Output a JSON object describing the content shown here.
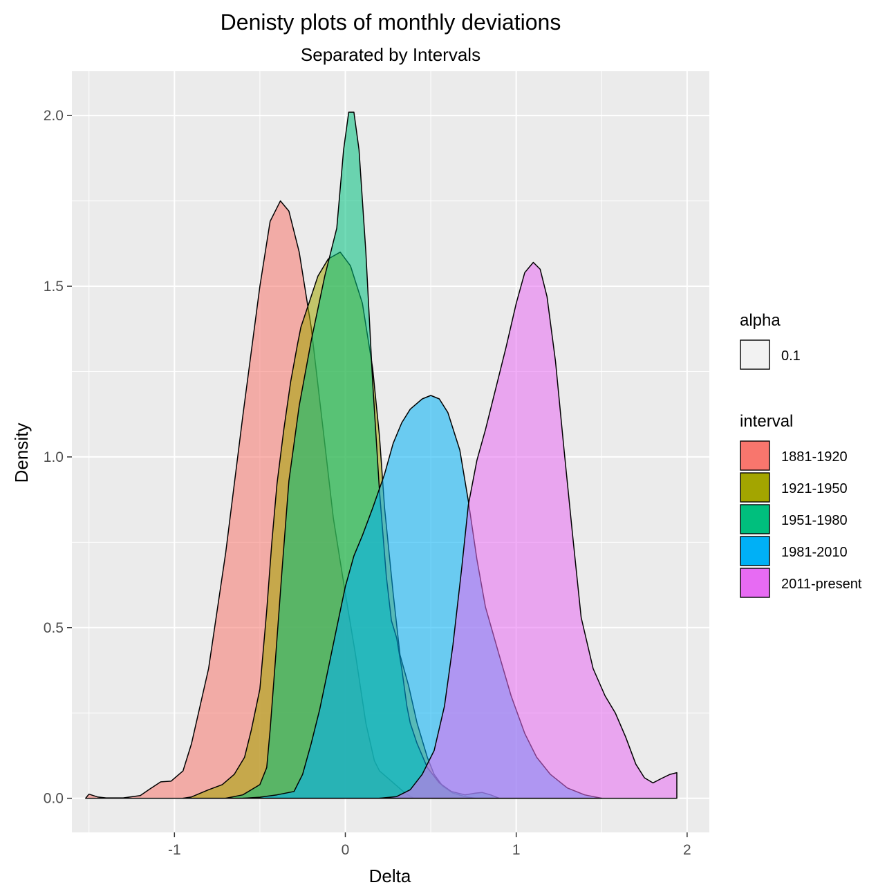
{
  "chart_data": {
    "type": "area",
    "title": "Denisty plots of monthly deviations",
    "subtitle": "Separated by Intervals",
    "xlabel": "Delta",
    "ylabel": "Density",
    "xlim": [
      -1.6,
      2.13
    ],
    "ylim": [
      -0.1,
      2.13
    ],
    "x_ticks": [
      -1,
      0,
      1,
      2
    ],
    "x_tick_labels": [
      "-1",
      "0",
      "1",
      "2"
    ],
    "y_ticks": [
      0.0,
      0.5,
      1.0,
      1.5,
      2.0
    ],
    "y_tick_labels": [
      "0.0",
      "0.5",
      "1.0",
      "1.5",
      "2.0"
    ],
    "grid": true,
    "fill_alpha": 0.55,
    "alpha_legend": {
      "title": "alpha",
      "label": "0.1"
    },
    "legend_title": "interval",
    "legend_position": "right",
    "series": [
      {
        "name": "1881-1920",
        "color": "#F8766D",
        "points": [
          [
            -1.52,
            0.0
          ],
          [
            -1.5,
            0.012
          ],
          [
            -1.45,
            0.004
          ],
          [
            -1.4,
            0.001
          ],
          [
            -1.3,
            0.001
          ],
          [
            -1.2,
            0.008
          ],
          [
            -1.15,
            0.025
          ],
          [
            -1.08,
            0.048
          ],
          [
            -1.02,
            0.05
          ],
          [
            -0.95,
            0.08
          ],
          [
            -0.9,
            0.16
          ],
          [
            -0.8,
            0.38
          ],
          [
            -0.7,
            0.72
          ],
          [
            -0.6,
            1.12
          ],
          [
            -0.5,
            1.5
          ],
          [
            -0.44,
            1.69
          ],
          [
            -0.38,
            1.75
          ],
          [
            -0.33,
            1.72
          ],
          [
            -0.27,
            1.6
          ],
          [
            -0.2,
            1.38
          ],
          [
            -0.13,
            1.08
          ],
          [
            -0.07,
            0.82
          ],
          [
            0.0,
            0.6
          ],
          [
            0.06,
            0.42
          ],
          [
            0.12,
            0.22
          ],
          [
            0.17,
            0.11
          ],
          [
            0.2,
            0.08
          ],
          [
            0.27,
            0.05
          ],
          [
            0.35,
            0.015
          ],
          [
            0.4,
            0.0
          ]
        ]
      },
      {
        "name": "1921-1950",
        "color": "#A3A500",
        "points": [
          [
            -0.95,
            0.0
          ],
          [
            -0.9,
            0.004
          ],
          [
            -0.8,
            0.025
          ],
          [
            -0.72,
            0.04
          ],
          [
            -0.65,
            0.07
          ],
          [
            -0.59,
            0.12
          ],
          [
            -0.55,
            0.2
          ],
          [
            -0.5,
            0.32
          ],
          [
            -0.46,
            0.55
          ],
          [
            -0.43,
            0.75
          ],
          [
            -0.4,
            0.92
          ],
          [
            -0.36,
            1.08
          ],
          [
            -0.32,
            1.22
          ],
          [
            -0.28,
            1.33
          ],
          [
            -0.26,
            1.38
          ],
          [
            -0.22,
            1.44
          ],
          [
            -0.16,
            1.53
          ],
          [
            -0.1,
            1.58
          ],
          [
            -0.03,
            1.6
          ],
          [
            0.03,
            1.56
          ],
          [
            0.1,
            1.45
          ],
          [
            0.16,
            1.26
          ],
          [
            0.2,
            1.06
          ],
          [
            0.23,
            0.85
          ],
          [
            0.28,
            0.6
          ],
          [
            0.32,
            0.42
          ],
          [
            0.37,
            0.33
          ],
          [
            0.42,
            0.22
          ],
          [
            0.48,
            0.12
          ],
          [
            0.52,
            0.07
          ],
          [
            0.57,
            0.035
          ],
          [
            0.63,
            0.015
          ],
          [
            0.7,
            0.005
          ],
          [
            0.76,
            0.0
          ]
        ]
      },
      {
        "name": "1951-1980",
        "color": "#00BF7D",
        "points": [
          [
            -0.7,
            0.0
          ],
          [
            -0.6,
            0.01
          ],
          [
            -0.5,
            0.04
          ],
          [
            -0.46,
            0.09
          ],
          [
            -0.44,
            0.2
          ],
          [
            -0.41,
            0.4
          ],
          [
            -0.37,
            0.67
          ],
          [
            -0.33,
            0.93
          ],
          [
            -0.27,
            1.15
          ],
          [
            -0.2,
            1.34
          ],
          [
            -0.12,
            1.53
          ],
          [
            -0.05,
            1.67
          ],
          [
            -0.01,
            1.9
          ],
          [
            0.02,
            2.01
          ],
          [
            0.05,
            2.01
          ],
          [
            0.08,
            1.9
          ],
          [
            0.12,
            1.6
          ],
          [
            0.16,
            1.22
          ],
          [
            0.2,
            0.9
          ],
          [
            0.24,
            0.65
          ],
          [
            0.27,
            0.52
          ],
          [
            0.3,
            0.47
          ],
          [
            0.33,
            0.38
          ],
          [
            0.36,
            0.27
          ],
          [
            0.38,
            0.22
          ],
          [
            0.42,
            0.16
          ],
          [
            0.48,
            0.09
          ],
          [
            0.55,
            0.045
          ],
          [
            0.62,
            0.02
          ],
          [
            0.7,
            0.01
          ],
          [
            0.76,
            0.015
          ],
          [
            0.8,
            0.017
          ],
          [
            0.85,
            0.01
          ],
          [
            0.9,
            0.0
          ]
        ]
      },
      {
        "name": "1981-2010",
        "color": "#00B0F6",
        "points": [
          [
            -0.6,
            0.0
          ],
          [
            -0.5,
            0.003
          ],
          [
            -0.4,
            0.01
          ],
          [
            -0.3,
            0.02
          ],
          [
            -0.25,
            0.07
          ],
          [
            -0.2,
            0.16
          ],
          [
            -0.15,
            0.26
          ],
          [
            -0.1,
            0.38
          ],
          [
            -0.05,
            0.5
          ],
          [
            0.0,
            0.62
          ],
          [
            0.05,
            0.71
          ],
          [
            0.1,
            0.77
          ],
          [
            0.16,
            0.85
          ],
          [
            0.23,
            0.95
          ],
          [
            0.28,
            1.04
          ],
          [
            0.33,
            1.1
          ],
          [
            0.38,
            1.14
          ],
          [
            0.45,
            1.17
          ],
          [
            0.5,
            1.18
          ],
          [
            0.55,
            1.17
          ],
          [
            0.6,
            1.13
          ],
          [
            0.67,
            1.02
          ],
          [
            0.72,
            0.87
          ],
          [
            0.77,
            0.7
          ],
          [
            0.82,
            0.56
          ],
          [
            0.9,
            0.42
          ],
          [
            0.97,
            0.3
          ],
          [
            1.05,
            0.19
          ],
          [
            1.12,
            0.12
          ],
          [
            1.2,
            0.07
          ],
          [
            1.3,
            0.03
          ],
          [
            1.4,
            0.01
          ],
          [
            1.5,
            0.0
          ]
        ]
      },
      {
        "name": "2011-present",
        "color": "#E76BF3",
        "points": [
          [
            0.2,
            0.0
          ],
          [
            0.3,
            0.005
          ],
          [
            0.38,
            0.025
          ],
          [
            0.45,
            0.07
          ],
          [
            0.52,
            0.14
          ],
          [
            0.58,
            0.27
          ],
          [
            0.63,
            0.45
          ],
          [
            0.68,
            0.67
          ],
          [
            0.72,
            0.86
          ],
          [
            0.77,
            0.99
          ],
          [
            0.82,
            1.08
          ],
          [
            0.88,
            1.2
          ],
          [
            0.94,
            1.32
          ],
          [
            1.0,
            1.45
          ],
          [
            1.05,
            1.54
          ],
          [
            1.1,
            1.57
          ],
          [
            1.14,
            1.55
          ],
          [
            1.18,
            1.47
          ],
          [
            1.23,
            1.28
          ],
          [
            1.28,
            1.02
          ],
          [
            1.33,
            0.77
          ],
          [
            1.38,
            0.53
          ],
          [
            1.45,
            0.38
          ],
          [
            1.52,
            0.3
          ],
          [
            1.58,
            0.25
          ],
          [
            1.64,
            0.18
          ],
          [
            1.7,
            0.1
          ],
          [
            1.75,
            0.06
          ],
          [
            1.8,
            0.045
          ],
          [
            1.85,
            0.058
          ],
          [
            1.9,
            0.07
          ],
          [
            1.94,
            0.075
          ],
          [
            1.94,
            0.0
          ]
        ]
      }
    ]
  }
}
